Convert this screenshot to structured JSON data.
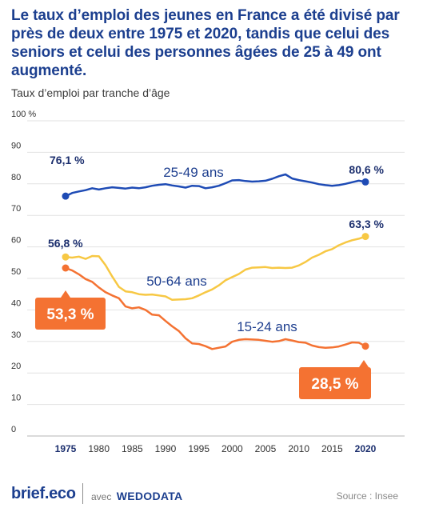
{
  "header": {
    "title": "Le taux d’emploi des jeunes en France a été divisé par près de deux entre 1975 et 2020, tandis que celui des seniors et celui des personnes âgées de 25 à 49 ont augmenté.",
    "subtitle": "Taux d’emploi par tranche d’âge"
  },
  "footer": {
    "logo": "brief.eco",
    "partner_prefix": "avec",
    "partner_name": "WEDODATA",
    "source": "Source : Insee"
  },
  "chart_data": {
    "type": "line",
    "title": "Taux d’emploi par tranche d’âge",
    "xlabel": "",
    "ylabel": "",
    "xlim": [
      1975,
      2020
    ],
    "ylim": [
      0,
      100
    ],
    "grid": true,
    "y_ticks": [
      {
        "value": 0,
        "label": "0"
      },
      {
        "value": 10,
        "label": "10"
      },
      {
        "value": 20,
        "label": "20"
      },
      {
        "value": 30,
        "label": "30"
      },
      {
        "value": 40,
        "label": "40"
      },
      {
        "value": 50,
        "label": "50"
      },
      {
        "value": 60,
        "label": "60"
      },
      {
        "value": 70,
        "label": "70"
      },
      {
        "value": 80,
        "label": "80"
      },
      {
        "value": 90,
        "label": "90"
      },
      {
        "value": 100,
        "label": "100 %"
      }
    ],
    "x_ticks": [
      {
        "value": 1975,
        "label": "1975",
        "bold": true
      },
      {
        "value": 1980,
        "label": "1980"
      },
      {
        "value": 1985,
        "label": "1985"
      },
      {
        "value": 1990,
        "label": "1990"
      },
      {
        "value": 1995,
        "label": "1995"
      },
      {
        "value": 2000,
        "label": "2000"
      },
      {
        "value": 2005,
        "label": "2005"
      },
      {
        "value": 2010,
        "label": "2010"
      },
      {
        "value": 2015,
        "label": "2015"
      },
      {
        "value": 2020,
        "label": "2020",
        "bold": true
      }
    ],
    "x": [
      1975,
      1976,
      1977,
      1978,
      1979,
      1980,
      1981,
      1982,
      1983,
      1984,
      1985,
      1986,
      1987,
      1988,
      1989,
      1990,
      1991,
      1992,
      1993,
      1994,
      1995,
      1996,
      1997,
      1998,
      1999,
      2000,
      2001,
      2002,
      2003,
      2004,
      2005,
      2006,
      2007,
      2008,
      2009,
      2010,
      2011,
      2012,
      2013,
      2014,
      2015,
      2016,
      2017,
      2018,
      2019,
      2020
    ],
    "series": [
      {
        "name": "25-49 ans",
        "color": "#1e4bb5",
        "start_label": "76,1 %",
        "end_label": "80,6 %",
        "label_style": "plain",
        "values": [
          76.1,
          77.1,
          77.6,
          78.0,
          78.6,
          78.2,
          78.6,
          78.9,
          78.7,
          78.5,
          78.8,
          78.6,
          78.9,
          79.4,
          79.7,
          79.9,
          79.5,
          79.2,
          78.8,
          79.4,
          79.3,
          78.6,
          78.9,
          79.4,
          80.2,
          81.1,
          81.2,
          80.9,
          80.7,
          80.8,
          81.0,
          81.6,
          82.4,
          83.0,
          81.7,
          81.2,
          80.8,
          80.4,
          79.9,
          79.6,
          79.4,
          79.6,
          80.0,
          80.5,
          81.0,
          80.6
        ]
      },
      {
        "name": "50-64 ans",
        "color": "#f7c844",
        "start_label": "56,8 %",
        "end_label": "63,3 %",
        "label_style": "plain",
        "values": [
          56.8,
          56.6,
          56.9,
          56.2,
          57.1,
          57.0,
          54.2,
          50.6,
          47.3,
          45.9,
          45.6,
          45.0,
          44.8,
          44.9,
          44.6,
          44.3,
          43.2,
          43.3,
          43.4,
          43.7,
          44.6,
          45.6,
          46.5,
          47.8,
          49.4,
          50.4,
          51.4,
          52.8,
          53.4,
          53.5,
          53.6,
          53.3,
          53.4,
          53.3,
          53.4,
          54.1,
          55.2,
          56.6,
          57.5,
          58.6,
          59.3,
          60.5,
          61.4,
          62.1,
          62.6,
          63.3
        ]
      },
      {
        "name": "15-24 ans",
        "color": "#f47232",
        "start_label": "53,3 %",
        "end_label": "28,5 %",
        "label_style": "badge",
        "values": [
          53.3,
          52.5,
          51.3,
          49.8,
          48.9,
          47.1,
          45.6,
          44.6,
          43.7,
          41.1,
          40.5,
          40.8,
          40.0,
          38.5,
          38.3,
          36.5,
          34.8,
          33.3,
          31.0,
          29.4,
          29.2,
          28.5,
          27.6,
          28.0,
          28.4,
          29.9,
          30.5,
          30.7,
          30.6,
          30.5,
          30.2,
          29.9,
          30.1,
          30.7,
          30.3,
          29.8,
          29.6,
          28.7,
          28.2,
          28.0,
          28.1,
          28.4,
          29.0,
          29.7,
          29.6,
          28.5
        ]
      }
    ]
  }
}
